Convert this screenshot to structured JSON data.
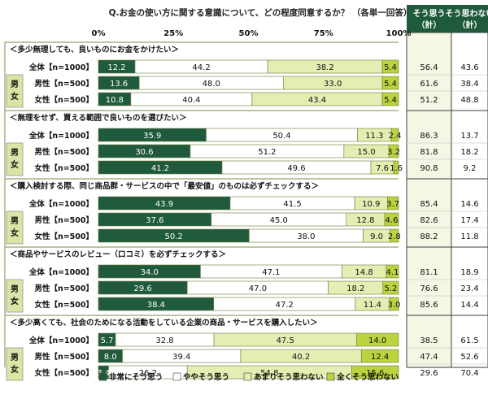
{
  "chart_data": {
    "type": "bar",
    "stacked": true,
    "orientation": "horizontal",
    "title": "Q.お金の使い方に関する意識について、どの程度同意するか？ （各単一回答）",
    "xlim": [
      0,
      100
    ],
    "x_ticks": [
      "0%",
      "25%",
      "50%",
      "75%",
      "100%"
    ],
    "legend_position": "bottom",
    "colors": {
      "s1": "#1f5a3c",
      "s2": "#ffffff",
      "s3": "#e4edb2",
      "s4": "#bcd23e",
      "table_border": "#3d3d3d",
      "header_bg": "#1f5a3c",
      "agree_col_bg": "#f5f6e4",
      "disagree_col_bg": "#ffffff",
      "gender_bg": "#dbe3a6",
      "header_text": "#ffffff",
      "section_line": "#7a8e4a",
      "row_divider": "#bcbcbc"
    },
    "series": [
      {
        "name": "非常にそう思う"
      },
      {
        "name": "ややそう思う"
      },
      {
        "name": "あまりそう思わない"
      },
      {
        "name": "全くそう思わない"
      }
    ],
    "columns": {
      "agree": "そう思う\n（計）",
      "disagree": "そう思わない\n（計）"
    },
    "gender_label": "男\n女",
    "sections": [
      {
        "title": "＜多少無理しても、良いものにお金をかけたい＞",
        "rows": [
          {
            "label": "全体【n=1000】",
            "values": [
              12.2,
              44.2,
              38.2,
              5.4
            ],
            "agree": "56.4",
            "disagree": "43.6"
          },
          {
            "label": "男性【n=500】",
            "values": [
              13.6,
              48.0,
              33.0,
              5.4
            ],
            "agree": "61.6",
            "disagree": "38.4"
          },
          {
            "label": "女性【n=500】",
            "values": [
              10.8,
              40.4,
              43.4,
              5.4
            ],
            "agree": "51.2",
            "disagree": "48.8"
          }
        ]
      },
      {
        "title": "＜無理をせず、買える範囲で良いものを選びたい＞",
        "rows": [
          {
            "label": "全体【n=1000】",
            "values": [
              35.9,
              50.4,
              11.3,
              2.4
            ],
            "agree": "86.3",
            "disagree": "13.7"
          },
          {
            "label": "男性【n=500】",
            "values": [
              30.6,
              51.2,
              15.0,
              3.2
            ],
            "agree": "81.8",
            "disagree": "18.2"
          },
          {
            "label": "女性【n=500】",
            "values": [
              41.2,
              49.6,
              7.6,
              1.6
            ],
            "agree": "90.8",
            "disagree": "9.2"
          }
        ]
      },
      {
        "title": "＜購入検討する際、同じ商品群・サービスの中で「最安値」のものは必ずチェックする＞",
        "rows": [
          {
            "label": "全体【n=1000】",
            "values": [
              43.9,
              41.5,
              10.9,
              3.7
            ],
            "agree": "85.4",
            "disagree": "14.6"
          },
          {
            "label": "男性【n=500】",
            "values": [
              37.6,
              45.0,
              12.8,
              4.6
            ],
            "agree": "82.6",
            "disagree": "17.4"
          },
          {
            "label": "女性【n=500】",
            "values": [
              50.2,
              38.0,
              9.0,
              2.8
            ],
            "agree": "88.2",
            "disagree": "11.8"
          }
        ]
      },
      {
        "title": "＜商品やサービスのレビュー（口コミ）を必ずチェックする＞",
        "rows": [
          {
            "label": "全体【n=1000】",
            "values": [
              34.0,
              47.1,
              14.8,
              4.1
            ],
            "agree": "81.1",
            "disagree": "18.9"
          },
          {
            "label": "男性【n=500】",
            "values": [
              29.6,
              47.0,
              18.2,
              5.2
            ],
            "agree": "76.6",
            "disagree": "23.4"
          },
          {
            "label": "女性【n=500】",
            "values": [
              38.4,
              47.2,
              11.4,
              3.0
            ],
            "agree": "85.6",
            "disagree": "14.4"
          }
        ]
      },
      {
        "title": "＜多少高くても、社会のためになる活動をしている企業の商品・サービスを購入したい＞",
        "rows": [
          {
            "label": "全体【n=1000】",
            "values": [
              5.7,
              32.8,
              47.5,
              14.0
            ],
            "agree": "38.5",
            "disagree": "61.5"
          },
          {
            "label": "男性【n=500】",
            "values": [
              8.0,
              39.4,
              40.2,
              12.4
            ],
            "agree": "47.4",
            "disagree": "52.6"
          },
          {
            "label": "女性【n=500】",
            "values": [
              3.4,
              26.2,
              54.8,
              15.6
            ],
            "agree": "29.6",
            "disagree": "70.4"
          }
        ]
      }
    ]
  }
}
